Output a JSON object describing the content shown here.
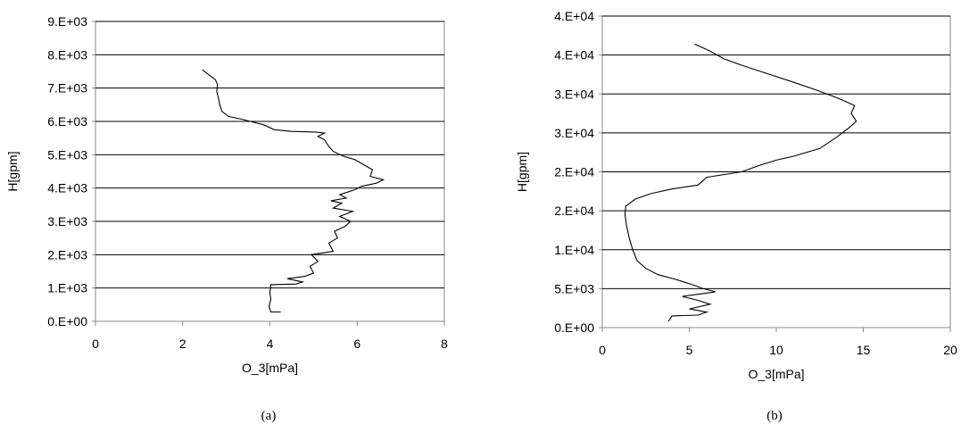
{
  "chart_data": [
    {
      "type": "line",
      "caption": "(a)",
      "xlabel": "O_3[mPa]",
      "ylabel": "H[gpm]",
      "xlim": [
        0,
        8
      ],
      "ylim": [
        0,
        9000
      ],
      "grid": "horizontal",
      "xticks": [
        0,
        2,
        4,
        6,
        8
      ],
      "xtick_labels": [
        "0",
        "2",
        "4",
        "6",
        "8"
      ],
      "yticks": [
        0,
        1000,
        2000,
        3000,
        4000,
        5000,
        6000,
        7000,
        8000,
        9000
      ],
      "ytick_labels": [
        "0.E+00",
        "1.E+03",
        "2.E+03",
        "3.E+03",
        "4.E+03",
        "5.E+03",
        "6.E+03",
        "7.E+03",
        "8.E+03",
        "9.E+03"
      ],
      "series": [
        {
          "points": [
            [
              4.25,
              280
            ],
            [
              4.02,
              280
            ],
            [
              3.98,
              450
            ],
            [
              4.02,
              650
            ],
            [
              4.0,
              850
            ],
            [
              4.02,
              1100
            ],
            [
              4.6,
              1120
            ],
            [
              4.75,
              1180
            ],
            [
              4.4,
              1280
            ],
            [
              4.8,
              1350
            ],
            [
              5.0,
              1450
            ],
            [
              4.92,
              1650
            ],
            [
              5.1,
              1800
            ],
            [
              4.95,
              2000
            ],
            [
              5.45,
              2100
            ],
            [
              5.35,
              2350
            ],
            [
              5.55,
              2500
            ],
            [
              5.48,
              2700
            ],
            [
              5.72,
              2850
            ],
            [
              5.85,
              3000
            ],
            [
              5.6,
              3150
            ],
            [
              5.9,
              3300
            ],
            [
              5.45,
              3400
            ],
            [
              5.65,
              3550
            ],
            [
              5.4,
              3620
            ],
            [
              5.75,
              3700
            ],
            [
              5.6,
              3800
            ],
            [
              5.95,
              3950
            ],
            [
              6.1,
              4050
            ],
            [
              6.45,
              4150
            ],
            [
              6.6,
              4250
            ],
            [
              6.3,
              4350
            ],
            [
              6.35,
              4550
            ],
            [
              6.15,
              4700
            ],
            [
              5.95,
              4850
            ],
            [
              5.7,
              4950
            ],
            [
              5.45,
              5100
            ],
            [
              5.35,
              5250
            ],
            [
              5.25,
              5450
            ],
            [
              5.1,
              5550
            ],
            [
              5.25,
              5650
            ],
            [
              5.05,
              5680
            ],
            [
              4.5,
              5700
            ],
            [
              4.1,
              5750
            ],
            [
              3.85,
              5900
            ],
            [
              3.4,
              6050
            ],
            [
              3.05,
              6150
            ],
            [
              2.9,
              6300
            ],
            [
              2.85,
              6500
            ],
            [
              2.82,
              6700
            ],
            [
              2.78,
              6900
            ],
            [
              2.8,
              7100
            ],
            [
              2.75,
              7250
            ],
            [
              2.65,
              7350
            ],
            [
              2.55,
              7450
            ],
            [
              2.45,
              7550
            ]
          ]
        }
      ]
    },
    {
      "type": "line",
      "caption": "(b)",
      "xlabel": "O_3[mPa]",
      "ylabel": "H[gpm]",
      "xlim": [
        0,
        20
      ],
      "ylim": [
        0,
        40000
      ],
      "grid": "horizontal",
      "xticks": [
        0,
        5,
        10,
        15,
        20
      ],
      "xtick_labels": [
        "0",
        "5",
        "10",
        "15",
        "20"
      ],
      "yticks": [
        0,
        5000,
        10000,
        15000,
        20000,
        25000,
        30000,
        35000,
        40000
      ],
      "ytick_labels": [
        "0.E+00",
        "5.E+03",
        "1.E+04",
        "2.E+04",
        "2.E+04",
        "3.E+04",
        "3.E+04",
        "4.E+04",
        "4.E+04"
      ],
      "series": [
        {
          "points": [
            [
              3.8,
              800
            ],
            [
              4.0,
              1500
            ],
            [
              5.5,
              1600
            ],
            [
              6.0,
              2000
            ],
            [
              5.0,
              2400
            ],
            [
              6.2,
              3000
            ],
            [
              5.5,
              3500
            ],
            [
              4.6,
              4000
            ],
            [
              6.5,
              4600
            ],
            [
              5.8,
              5000
            ],
            [
              5.2,
              5500
            ],
            [
              4.2,
              6200
            ],
            [
              3.2,
              6800
            ],
            [
              2.5,
              7600
            ],
            [
              2.0,
              8600
            ],
            [
              1.75,
              10000
            ],
            [
              1.55,
              11500
            ],
            [
              1.4,
              13000
            ],
            [
              1.3,
              14500
            ],
            [
              1.35,
              15600
            ],
            [
              1.9,
              16500
            ],
            [
              2.8,
              17200
            ],
            [
              4.0,
              17800
            ],
            [
              5.5,
              18300
            ],
            [
              6.0,
              19300
            ],
            [
              8.0,
              20000
            ],
            [
              9.0,
              20800
            ],
            [
              10.0,
              21500
            ],
            [
              11.0,
              22000
            ],
            [
              12.5,
              23000
            ],
            [
              13.5,
              24500
            ],
            [
              14.2,
              25700
            ],
            [
              14.6,
              26500
            ],
            [
              14.3,
              27500
            ],
            [
              14.5,
              28500
            ],
            [
              13.5,
              29500
            ],
            [
              12.3,
              30500
            ],
            [
              11.0,
              31500
            ],
            [
              9.5,
              32600
            ],
            [
              8.0,
              33700
            ],
            [
              7.0,
              34500
            ],
            [
              6.2,
              35500
            ],
            [
              5.3,
              36400
            ]
          ]
        }
      ]
    }
  ]
}
